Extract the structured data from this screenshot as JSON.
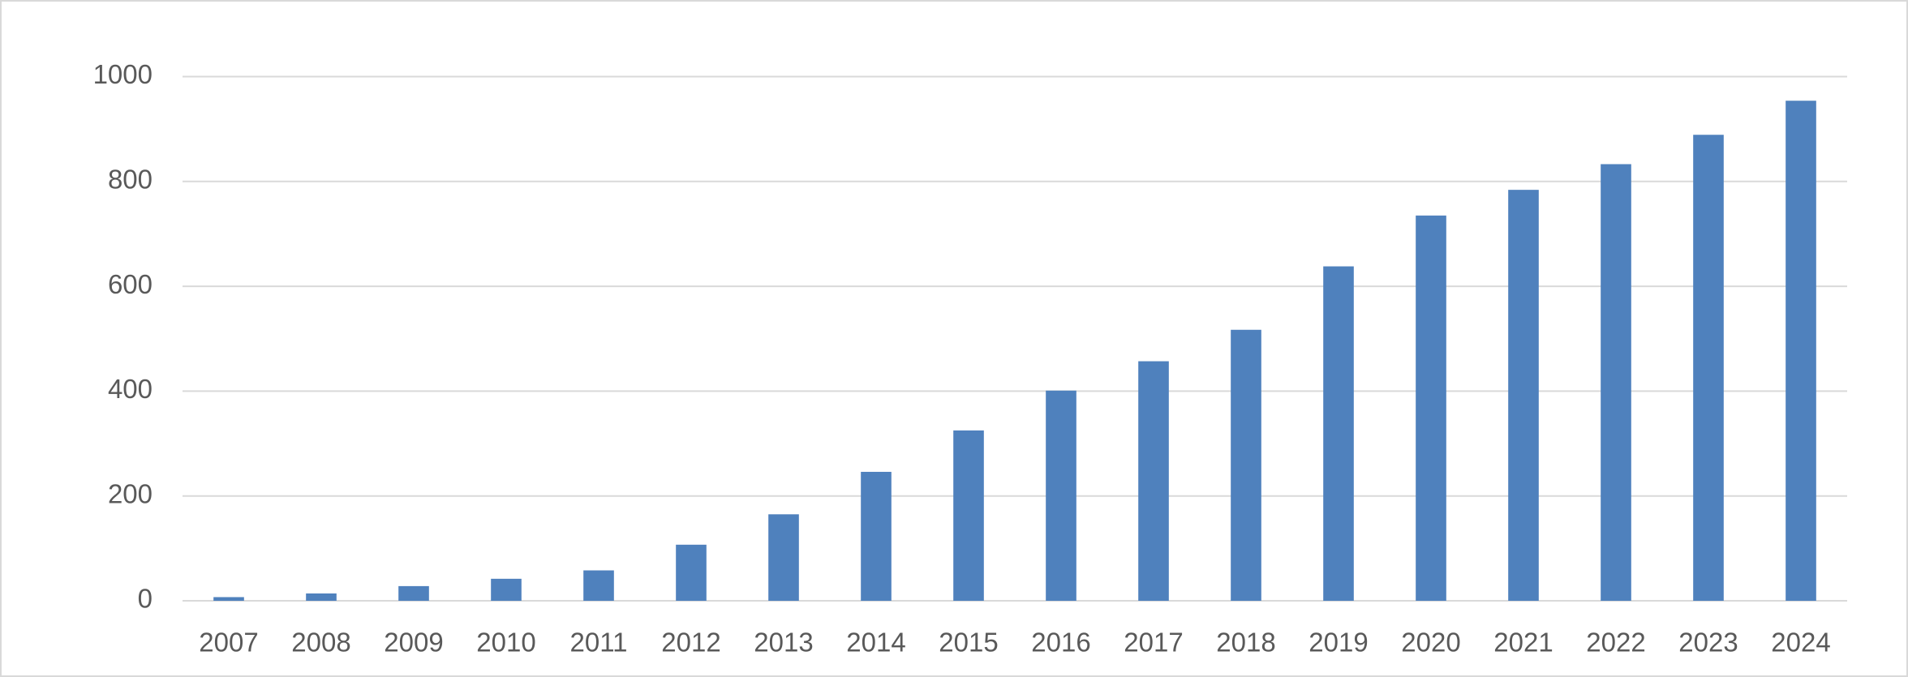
{
  "chart_data": {
    "type": "bar",
    "categories": [
      "2007",
      "2008",
      "2009",
      "2010",
      "2011",
      "2012",
      "2013",
      "2014",
      "2015",
      "2016",
      "2017",
      "2018",
      "2019",
      "2020",
      "2021",
      "2022",
      "2023",
      "2024"
    ],
    "values": [
      7,
      14,
      28,
      42,
      58,
      107,
      165,
      246,
      325,
      401,
      457,
      517,
      638,
      735,
      784,
      833,
      889,
      954
    ],
    "color": "#4f81bd",
    "ylim": [
      0,
      1000
    ],
    "yticks": [
      0,
      200,
      400,
      600,
      800,
      1000
    ],
    "grid": true
  }
}
